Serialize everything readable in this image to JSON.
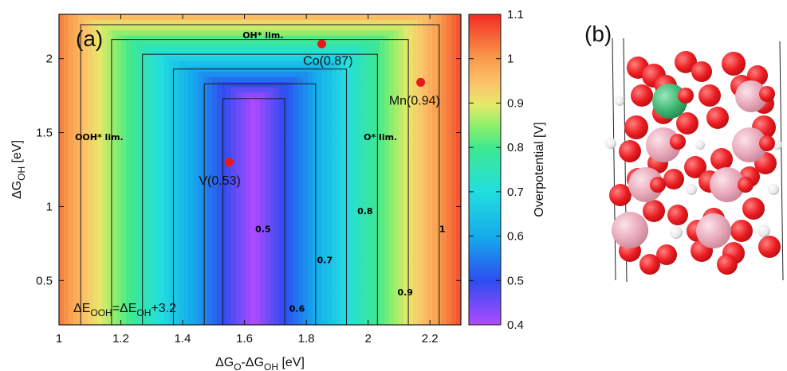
{
  "panel_a_label": "(a)",
  "panel_b_label": "(b)",
  "colors": {
    "low": "#7a2cf5",
    "high": "#ff1a1a",
    "point": "#e8171a",
    "oxygen": "#ec1d22",
    "metal": "#e8a9b9",
    "dopant": "#3fb874",
    "hydrogen": "#ececec"
  },
  "chart_data": {
    "type": "heatmap",
    "xlabel": {
      "main": "ΔG",
      "sub1": "O",
      "mid": "-ΔG",
      "sub2": "OH",
      "unit": " [eV]"
    },
    "ylabel": {
      "main": "ΔG",
      "sub": "OH",
      "unit": " [eV]"
    },
    "colorbar_label": "Overpotential [V]",
    "xlim": [
      1.0,
      2.3
    ],
    "ylim": [
      0.2,
      2.3
    ],
    "clim": [
      0.4,
      1.1
    ],
    "xticks": [
      "1",
      "1.2",
      "1.4",
      "1.6",
      "1.8",
      "2",
      "2.2"
    ],
    "xtick_values": [
      1.0,
      1.2,
      1.4,
      1.6,
      1.8,
      2.0,
      2.2
    ],
    "yticks": [
      "0.5",
      "1",
      "1.5",
      "2"
    ],
    "ytick_values": [
      0.5,
      1.0,
      1.5,
      2.0
    ],
    "cbticks": [
      "0.4",
      "0.5",
      "0.6",
      "0.7",
      "0.8",
      "0.9",
      "1",
      "1.1"
    ],
    "cbtick_values": [
      0.4,
      0.5,
      0.6,
      0.7,
      0.8,
      0.9,
      1.0,
      1.1
    ],
    "optimum": {
      "x": 1.63,
      "y": 1.73,
      "eta": 0.4
    },
    "contours": [
      {
        "level": 0.5,
        "label": "0.5",
        "xl": 1.53,
        "xr": 1.73,
        "ytop": 1.73,
        "lx": 1.66,
        "ly": 0.85
      },
      {
        "level": 0.6,
        "label": "0.6",
        "xl": 1.47,
        "xr": 1.83,
        "ytop": 1.83,
        "lx": 1.77,
        "ly": 0.31
      },
      {
        "level": 0.7,
        "label": "0.7",
        "xl": 1.37,
        "xr": 1.93,
        "ytop": 1.93,
        "lx": 1.86,
        "ly": 0.64
      },
      {
        "level": 0.8,
        "label": "0.8",
        "xl": 1.27,
        "xr": 2.03,
        "ytop": 2.03,
        "lx": 1.99,
        "ly": 0.97
      },
      {
        "level": 0.9,
        "label": "0.9",
        "xl": 1.17,
        "xr": 2.13,
        "ytop": 2.13,
        "lx": 2.12,
        "ly": 0.42
      },
      {
        "level": 1.0,
        "label": "1",
        "xl": 1.07,
        "xr": 2.23,
        "ytop": 2.23,
        "lx": 2.24,
        "ly": 0.85
      }
    ],
    "region_labels": [
      {
        "text": "OH* lim.",
        "x": 1.66,
        "y": 2.16
      },
      {
        "text": "OOH* lim.",
        "x": 1.13,
        "y": 1.47
      },
      {
        "text": "O* lim.",
        "x": 2.04,
        "y": 1.47
      }
    ],
    "points": [
      {
        "name": "Co(0.87)",
        "x": 1.85,
        "y": 2.1,
        "lx": 1.87,
        "ly": 1.99
      },
      {
        "name": "Mn(0.94)",
        "x": 2.17,
        "y": 1.84,
        "lx": 2.15,
        "ly": 1.72
      },
      {
        "name": "V(0.53)",
        "x": 1.55,
        "y": 1.3,
        "lx": 1.52,
        "ly": 1.18
      }
    ],
    "annotation": {
      "text_a": "ΔE",
      "sub_a": "OOH",
      "text_b": "=ΔE",
      "sub_b": "OH",
      "text_c": "+3.2"
    }
  }
}
